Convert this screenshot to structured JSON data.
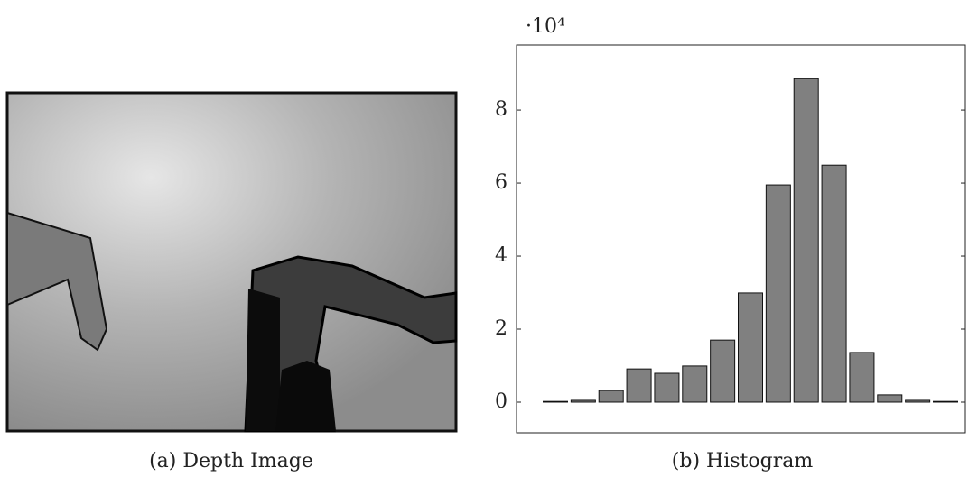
{
  "captions": {
    "left": "(a) Depth Image",
    "right": "(b) Histogram"
  },
  "chart_data": {
    "type": "bar",
    "axis_multiplier": "·10⁴",
    "categories": [
      null,
      null,
      null,
      null,
      null,
      null,
      null,
      null,
      null,
      null,
      null,
      null,
      null,
      null,
      null
    ],
    "values": [
      0.02,
      0.05,
      0.32,
      0.91,
      0.79,
      0.99,
      1.7,
      2.99,
      5.95,
      8.86,
      6.49,
      1.36,
      0.2,
      0.05,
      0.02
    ],
    "color": "#808080",
    "ylim": [
      -0.84,
      9.78
    ],
    "yticks": [
      0,
      2,
      4,
      6,
      8
    ]
  }
}
